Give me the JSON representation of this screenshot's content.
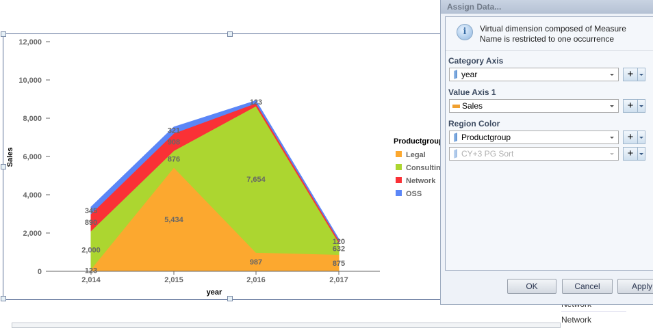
{
  "chart_data": {
    "type": "area",
    "stacked": true,
    "xlabel": "year",
    "ylabel": "Sales",
    "categories": [
      "2,014",
      "2,015",
      "2,016",
      "2,017"
    ],
    "ylim": [
      0,
      12000
    ],
    "yticks": [
      "0",
      "2,000",
      "4,000",
      "6,000",
      "8,000",
      "10,000",
      "12,000"
    ],
    "ytick_values": [
      0,
      2000,
      4000,
      6000,
      8000,
      10000,
      12000
    ],
    "legend_title": "Productgroup",
    "legend_position": "right",
    "grid": false,
    "series": [
      {
        "name": "Legal",
        "color": "#fca82f",
        "values": [
          123,
          5434,
          987,
          875
        ],
        "labels": [
          "123",
          "5,434",
          "987",
          "875"
        ]
      },
      {
        "name": "Consulting",
        "color": "#acd630",
        "values": [
          2000,
          876,
          7654,
          632
        ],
        "labels": [
          "2,000",
          "876",
          "7,654",
          "632"
        ]
      },
      {
        "name": "Network",
        "color": "#fa3136",
        "values": [
          890,
          908,
          150,
          120
        ],
        "labels": [
          "890",
          "908",
          null,
          "120"
        ]
      },
      {
        "name": "OSS",
        "color": "#5b86f7",
        "values": [
          345,
          321,
          123,
          60
        ],
        "labels": [
          "345",
          "321",
          "123",
          null
        ]
      }
    ]
  },
  "dialog": {
    "title": "Assign Data...",
    "info": "Virtual dimension composed of Measure Name is restricted to one occurrence",
    "category_axis_label": "Category Axis",
    "category_value": "year",
    "value_axis_label": "Value Axis 1",
    "value_value": "Sales",
    "region_color_label": "Region Color",
    "region_value": "Productgroup",
    "region_value2": "CY+3 PG Sort",
    "plus": "+",
    "ok": "OK",
    "cancel": "Cancel",
    "apply": "Apply"
  },
  "background_list": [
    "Network",
    "Network"
  ]
}
